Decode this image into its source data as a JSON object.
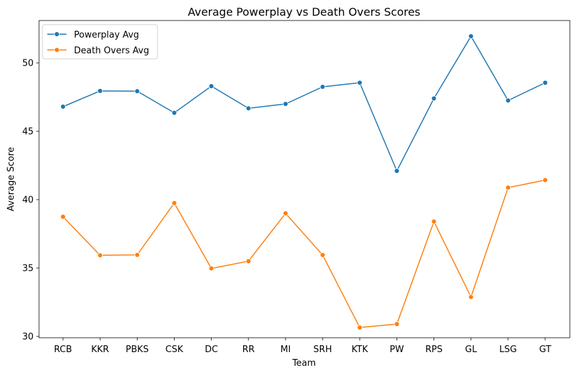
{
  "chart_data": {
    "type": "line",
    "title": "Average Powerplay vs Death Overs Scores",
    "xlabel": "Team",
    "ylabel": "Average Score",
    "categories": [
      "RCB",
      "KKR",
      "PBKS",
      "CSK",
      "DC",
      "RR",
      "MI",
      "SRH",
      "KTK",
      "PW",
      "RPS",
      "GL",
      "LSG",
      "GT"
    ],
    "yticks": [
      30,
      35,
      40,
      45,
      50
    ],
    "ylim": [
      29.9,
      53.1
    ],
    "grid": false,
    "legend_position": "top-left",
    "series": [
      {
        "name": "Powerplay Avg",
        "color": "#1f77b4",
        "values": [
          46.8,
          47.95,
          47.93,
          46.35,
          48.3,
          46.68,
          47.0,
          48.25,
          48.55,
          42.1,
          47.4,
          51.95,
          47.25,
          48.55
        ]
      },
      {
        "name": "Death Overs Avg",
        "color": "#ff7f0e",
        "values": [
          38.75,
          35.93,
          35.96,
          39.75,
          34.97,
          35.5,
          39.0,
          35.95,
          30.65,
          30.9,
          38.4,
          32.88,
          40.88,
          41.43
        ]
      }
    ]
  }
}
